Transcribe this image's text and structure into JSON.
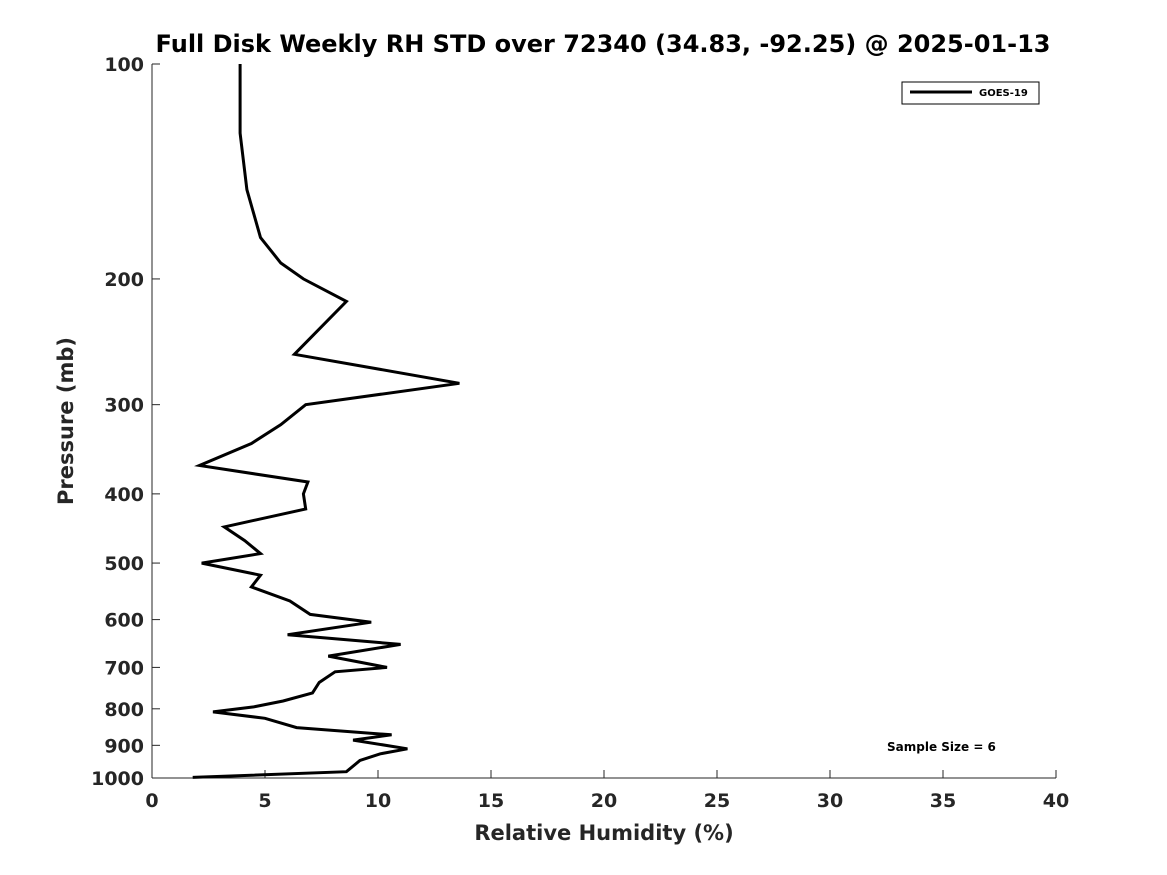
{
  "chart_data": {
    "type": "line",
    "title": "Full Disk Weekly RH STD over 72340 (34.83, -92.25) @ 2025-01-13",
    "xlabel": "Relative Humidity (%)",
    "ylabel": "Pressure (mb)",
    "xlim": [
      0,
      40
    ],
    "ylim": [
      1000,
      100
    ],
    "y_scale": "log",
    "y_reversed": true,
    "grid": false,
    "x_ticks": [
      "0",
      "5",
      "10",
      "15",
      "20",
      "25",
      "30",
      "35",
      "40"
    ],
    "y_ticks": [
      "100",
      "200",
      "300",
      "400",
      "500",
      "600",
      "700",
      "800",
      "900",
      "1000"
    ],
    "legend_position": "top-right",
    "annotation": "Sample Size = 6",
    "series": [
      {
        "name": "GOES-19",
        "color": "#000000",
        "x": [
          3.9,
          3.9,
          3.9,
          4.2,
          4.8,
          5.7,
          6.7,
          8.6,
          6.3,
          13.6,
          6.8,
          5.7,
          4.4,
          2.1,
          6.9,
          6.7,
          6.8,
          3.2,
          4.1,
          4.8,
          2.2,
          4.8,
          4.4,
          6.1,
          7.0,
          9.7,
          6.0,
          11.0,
          7.8,
          10.4,
          8.1,
          7.4,
          7.1,
          5.8,
          4.5,
          2.7,
          5.0,
          6.4,
          10.6,
          8.9,
          11.3,
          10.1,
          9.2,
          8.6,
          1.8
        ],
        "y": [
          100,
          100,
          125,
          150,
          175,
          190,
          200,
          215,
          255,
          280,
          300,
          320,
          340,
          365,
          385,
          400,
          420,
          445,
          465,
          485,
          500,
          520,
          540,
          565,
          590,
          605,
          630,
          650,
          675,
          700,
          710,
          735,
          760,
          780,
          795,
          808,
          825,
          850,
          870,
          885,
          910,
          925,
          945,
          980,
          998
        ]
      }
    ]
  }
}
